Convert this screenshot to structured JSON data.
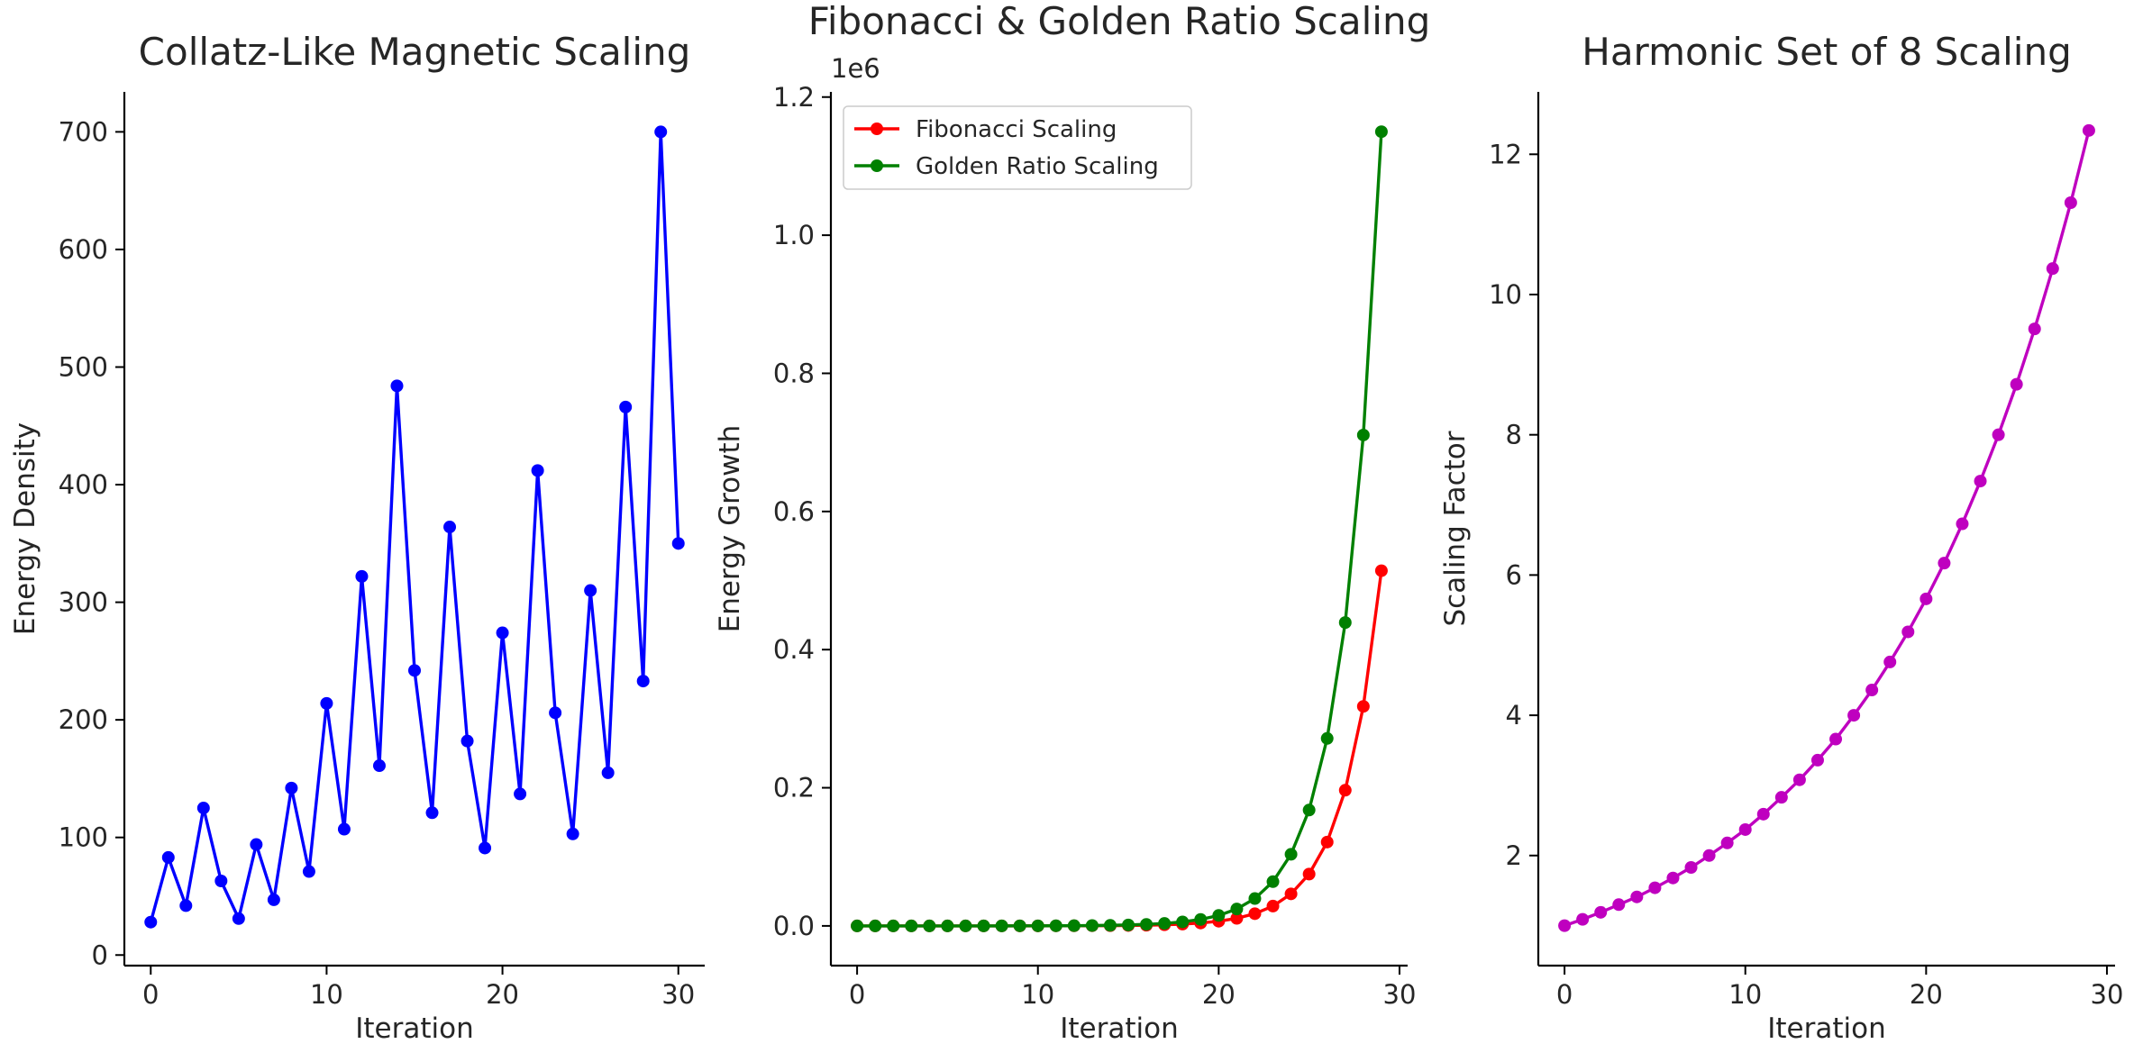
{
  "chart_data": [
    {
      "type": "line",
      "title": "Collatz-Like Magnetic Scaling",
      "xlabel": "Iteration",
      "ylabel": "Energy Density",
      "xlim": [
        -1.5,
        31.5
      ],
      "ylim": [
        -9,
        734
      ],
      "xticks": [
        0,
        10,
        20,
        30
      ],
      "xtick_labels": [
        "0",
        "10",
        "20",
        "30"
      ],
      "yticks": [
        0,
        100,
        200,
        300,
        400,
        500,
        600,
        700
      ],
      "ytick_labels": [
        "0",
        "100",
        "200",
        "300",
        "400",
        "500",
        "600",
        "700"
      ],
      "grid": false,
      "x": [
        0,
        1,
        2,
        3,
        4,
        5,
        6,
        7,
        8,
        9,
        10,
        11,
        12,
        13,
        14,
        15,
        16,
        17,
        18,
        19,
        20,
        21,
        22,
        23,
        24,
        25,
        26,
        27,
        28,
        29,
        30
      ],
      "series": [
        {
          "color": "#0000ff",
          "marker": "circle",
          "values": [
            28,
            83,
            42,
            125,
            63,
            31,
            94,
            47,
            142,
            71,
            214,
            107,
            322,
            161,
            484,
            242,
            121,
            364,
            182,
            91,
            274,
            137,
            412,
            206,
            103,
            310,
            155,
            466,
            233,
            700,
            350
          ]
        }
      ]
    },
    {
      "type": "line",
      "title": "Fibonacci & Golden Ratio Scaling",
      "xlabel": "Iteration",
      "ylabel": "Energy Growth",
      "offset_label": "1e6",
      "xlim": [
        -1.45,
        30.45
      ],
      "ylim": [
        -0.0575,
        1.2075
      ],
      "xticks": [
        0,
        10,
        20,
        30
      ],
      "xtick_labels": [
        "0",
        "10",
        "20",
        "30"
      ],
      "yticks": [
        0,
        0.2,
        0.4,
        0.6,
        0.8,
        1.0,
        1.2
      ],
      "ytick_labels": [
        "0.0",
        "0.2",
        "0.4",
        "0.6",
        "0.8",
        "1.0",
        "1.2"
      ],
      "grid": false,
      "legend": {
        "placement": "top-left"
      },
      "x": [
        0,
        1,
        2,
        3,
        4,
        5,
        6,
        7,
        8,
        9,
        10,
        11,
        12,
        13,
        14,
        15,
        16,
        17,
        18,
        19,
        20,
        21,
        22,
        23,
        24,
        25,
        26,
        27,
        28,
        29
      ],
      "series": [
        {
          "name": "Fibonacci Scaling",
          "color": "#ff0000",
          "marker": "circle",
          "values": [
            0,
            1e-06,
            1e-06,
            2e-06,
            3e-06,
            5e-06,
            8e-06,
            1.3e-05,
            2.1e-05,
            3.4e-05,
            5.5e-05,
            8.9e-05,
            0.000144,
            0.000233,
            0.000377,
            0.00061,
            0.000987,
            0.001597,
            0.002584,
            0.004181,
            0.006765,
            0.010946,
            0.017711,
            0.028657,
            0.046368,
            0.075025,
            0.121393,
            0.196418,
            0.317811,
            0.514229
          ]
        },
        {
          "name": "Golden Ratio Scaling",
          "color": "#008000",
          "marker": "circle",
          "values": [
            1e-06,
            1.6e-06,
            2.6e-06,
            4.2e-06,
            6.9e-06,
            1.11e-05,
            1.8e-05,
            2.9e-05,
            4.7e-05,
            7.6e-05,
            0.000123,
            0.000199,
            0.000322,
            0.000521,
            0.000843,
            0.001364,
            0.002207,
            0.003571,
            0.005778,
            0.009349,
            0.015127,
            0.024476,
            0.039603,
            0.064079,
            0.103682,
            0.167761,
            0.271443,
            0.439204,
            0.710647,
            1.14985
          ]
        }
      ]
    },
    {
      "type": "line",
      "title": "Harmonic Set of 8 Scaling",
      "xlabel": "Iteration",
      "ylabel": "Scaling Factor",
      "xlim": [
        -1.45,
        30.45
      ],
      "ylim": [
        0.43,
        12.89
      ],
      "xticks": [
        0,
        10,
        20,
        30
      ],
      "xtick_labels": [
        "0",
        "10",
        "20",
        "30"
      ],
      "yticks": [
        2,
        4,
        6,
        8,
        10,
        12
      ],
      "ytick_labels": [
        "2",
        "4",
        "6",
        "8",
        "10",
        "12"
      ],
      "grid": false,
      "x": [
        0,
        1,
        2,
        3,
        4,
        5,
        6,
        7,
        8,
        9,
        10,
        11,
        12,
        13,
        14,
        15,
        16,
        17,
        18,
        19,
        20,
        21,
        22,
        23,
        24,
        25,
        26,
        27,
        28,
        29
      ],
      "series": [
        {
          "color": "#bf00bf",
          "marker": "circle",
          "values": [
            1,
            1.09,
            1.19,
            1.3,
            1.41,
            1.54,
            1.68,
            1.83,
            2,
            2.18,
            2.37,
            2.59,
            2.83,
            3.08,
            3.36,
            3.66,
            4,
            4.36,
            4.76,
            5.19,
            5.66,
            6.17,
            6.73,
            7.34,
            8,
            8.72,
            9.51,
            10.37,
            11.31,
            12.34
          ]
        }
      ]
    }
  ]
}
